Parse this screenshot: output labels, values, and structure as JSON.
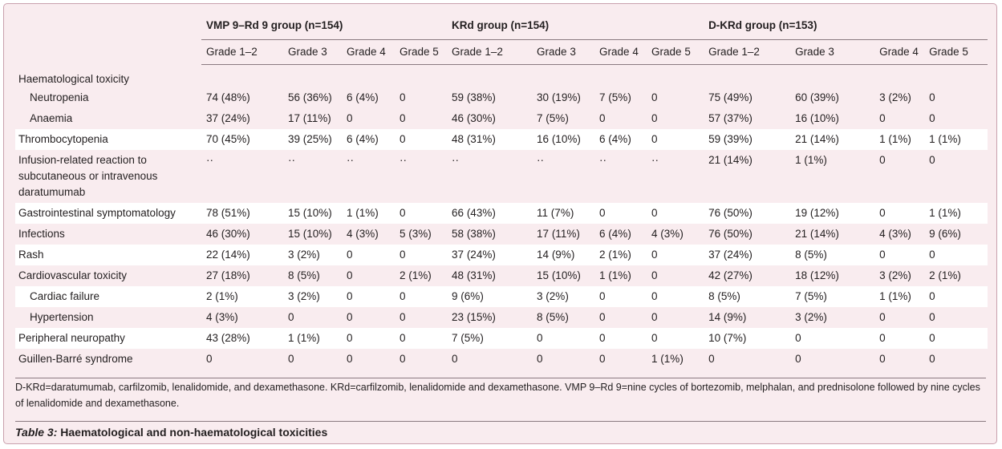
{
  "groups": [
    "VMP 9–Rd 9 group (n=154)",
    "KRd group (n=154)",
    "D-KRd group (n=153)"
  ],
  "grades": [
    "Grade 1–2",
    "Grade 3",
    "Grade 4",
    "Grade 5",
    "Grade 1–2",
    "Grade 3",
    "Grade 4",
    "Grade 5",
    "Grade 1–2",
    "Grade 3",
    "Grade 4",
    "Grade 5"
  ],
  "section_label": "Haematological toxicity",
  "rows": [
    {
      "label": "Neutropenia",
      "cells": [
        "74 (48%)",
        "56 (36%)",
        "6 (4%)",
        "0",
        "59 (38%)",
        "30 (19%)",
        "7 (5%)",
        "0",
        "75 (49%)",
        "60 (39%)",
        "3 (2%)",
        "0"
      ]
    },
    {
      "label": "Anaemia",
      "cells": [
        "37 (24%)",
        "17 (11%)",
        "0",
        "0",
        "46 (30%)",
        "7 (5%)",
        "0",
        "0",
        "57 (37%)",
        "16 (10%)",
        "0",
        "0"
      ]
    },
    {
      "label": "Thrombocytopenia",
      "cells": [
        "70 (45%)",
        "39 (25%)",
        "6 (4%)",
        "0",
        "48 (31%)",
        "16 (10%)",
        "6 (4%)",
        "0",
        "59 (39%)",
        "21 (14%)",
        "1 (1%)",
        "1 (1%)"
      ]
    },
    {
      "label": "Infusion-related reaction to subcutaneous or intravenous daratumumab",
      "cells": [
        "··",
        "··",
        "··",
        "··",
        "··",
        "··",
        "··",
        "··",
        "21 (14%)",
        "1 (1%)",
        "0",
        "0"
      ]
    },
    {
      "label": "Gastrointestinal symptomatology",
      "cells": [
        "78 (51%)",
        "15 (10%)",
        "1 (1%)",
        "0",
        "66 (43%)",
        "11 (7%)",
        "0",
        "0",
        "76 (50%)",
        "19 (12%)",
        "0",
        "1 (1%)"
      ]
    },
    {
      "label": "Infections",
      "cells": [
        "46 (30%)",
        "15 (10%)",
        "4 (3%)",
        "5 (3%)",
        "58 (38%)",
        "17 (11%)",
        "6 (4%)",
        "4 (3%)",
        "76 (50%)",
        "21 (14%)",
        "4 (3%)",
        "9 (6%)"
      ]
    },
    {
      "label": "Rash",
      "cells": [
        "22 (14%)",
        "3 (2%)",
        "0",
        "0",
        "37 (24%)",
        "14 (9%)",
        "2 (1%)",
        "0",
        "37 (24%)",
        "8 (5%)",
        "0",
        "0"
      ]
    },
    {
      "label": "Cardiovascular toxicity",
      "cells": [
        "27 (18%)",
        "8 (5%)",
        "0",
        "2 (1%)",
        "48 (31%)",
        "15 (10%)",
        "1 (1%)",
        "0",
        "42 (27%)",
        "18 (12%)",
        "3 (2%)",
        "2 (1%)"
      ]
    },
    {
      "label": "Cardiac failure",
      "cells": [
        "2 (1%)",
        "3 (2%)",
        "0",
        "0",
        "9 (6%)",
        "3 (2%)",
        "0",
        "0",
        "8 (5%)",
        "7 (5%)",
        "1 (1%)",
        "0"
      ]
    },
    {
      "label": "Hypertension",
      "cells": [
        "4 (3%)",
        "0",
        "0",
        "0",
        "23 (15%)",
        "8 (5%)",
        "0",
        "0",
        "14 (9%)",
        "3 (2%)",
        "0",
        "0"
      ]
    },
    {
      "label": "Peripheral neuropathy",
      "cells": [
        "43 (28%)",
        "1 (1%)",
        "0",
        "0",
        "7 (5%)",
        "0",
        "0",
        "0",
        "10 (7%)",
        "0",
        "0",
        "0"
      ]
    },
    {
      "label": "Guillen-Barré syndrome",
      "cells": [
        "0",
        "0",
        "0",
        "0",
        "0",
        "0",
        "0",
        "1 (1%)",
        "0",
        "0",
        "0",
        "0"
      ]
    }
  ],
  "footnote": "D-KRd=daratumumab, carfilzomib, lenalidomide, and dexamethasone. KRd=carfilzomib, lenalidomide and dexamethasone. VMP 9–Rd 9=nine cycles of bortezomib, melphalan, and prednisolone followed by nine cycles of lenalidomide and dexamethasone.",
  "caption": {
    "label": "Table 3:",
    "text": " Haematological and non-haematological toxicities"
  },
  "colors": {
    "background": "#f9ecef",
    "white_row": "#ffffff",
    "border": "#c9a0ad"
  }
}
